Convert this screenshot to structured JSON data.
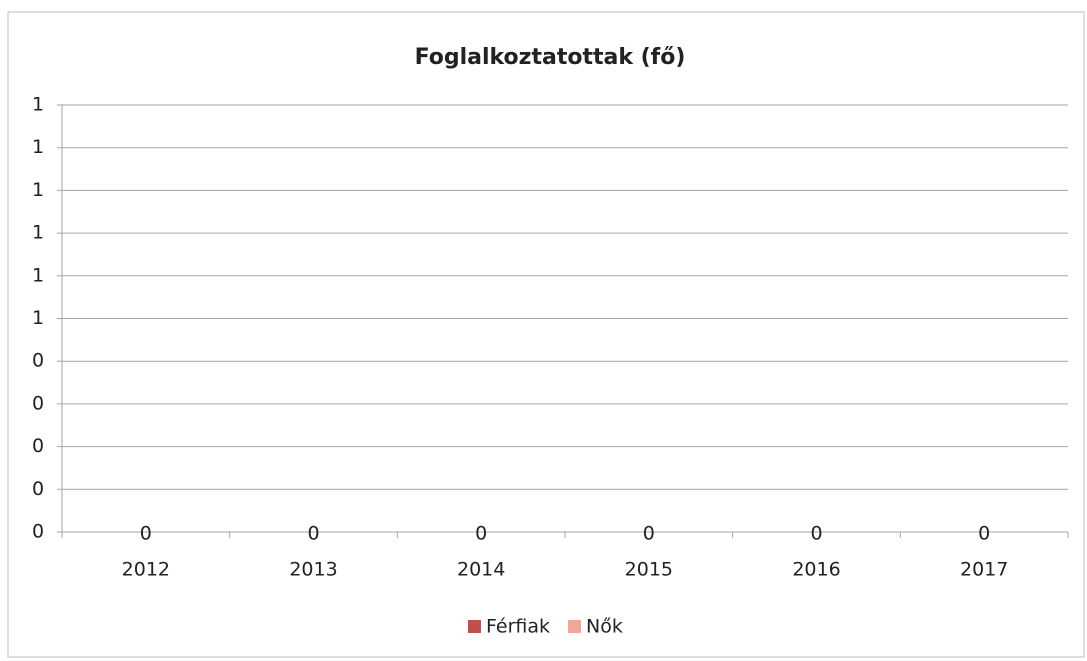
{
  "chart_data": {
    "type": "bar",
    "title": "Foglalkoztatottak (fő)",
    "categories": [
      "2012",
      "2013",
      "2014",
      "2015",
      "2016",
      "2017"
    ],
    "series": [
      {
        "name": "Férfiak",
        "color": "#c0504d",
        "values": [
          0,
          0,
          0,
          0,
          0,
          0
        ]
      },
      {
        "name": "Nők",
        "color": "#f2a598",
        "values": [
          0,
          0,
          0,
          0,
          0,
          0
        ]
      }
    ],
    "ylim": [
      0,
      1
    ],
    "yticks": [
      0,
      {
        "value": 0.1,
        "label": "0"
      },
      {
        "value": 0.2,
        "label": "0"
      },
      {
        "value": 0.3,
        "label": "0"
      },
      {
        "value": 0.4,
        "label": "0"
      },
      {
        "value": 0.5,
        "label": "1"
      },
      {
        "value": 0.6,
        "label": "1"
      },
      {
        "value": 0.7,
        "label": "1"
      },
      {
        "value": 0.8,
        "label": "1"
      },
      {
        "value": 0.9,
        "label": "1"
      },
      {
        "value": 1,
        "label": "1"
      }
    ],
    "grid": true,
    "legend": "bottom"
  }
}
